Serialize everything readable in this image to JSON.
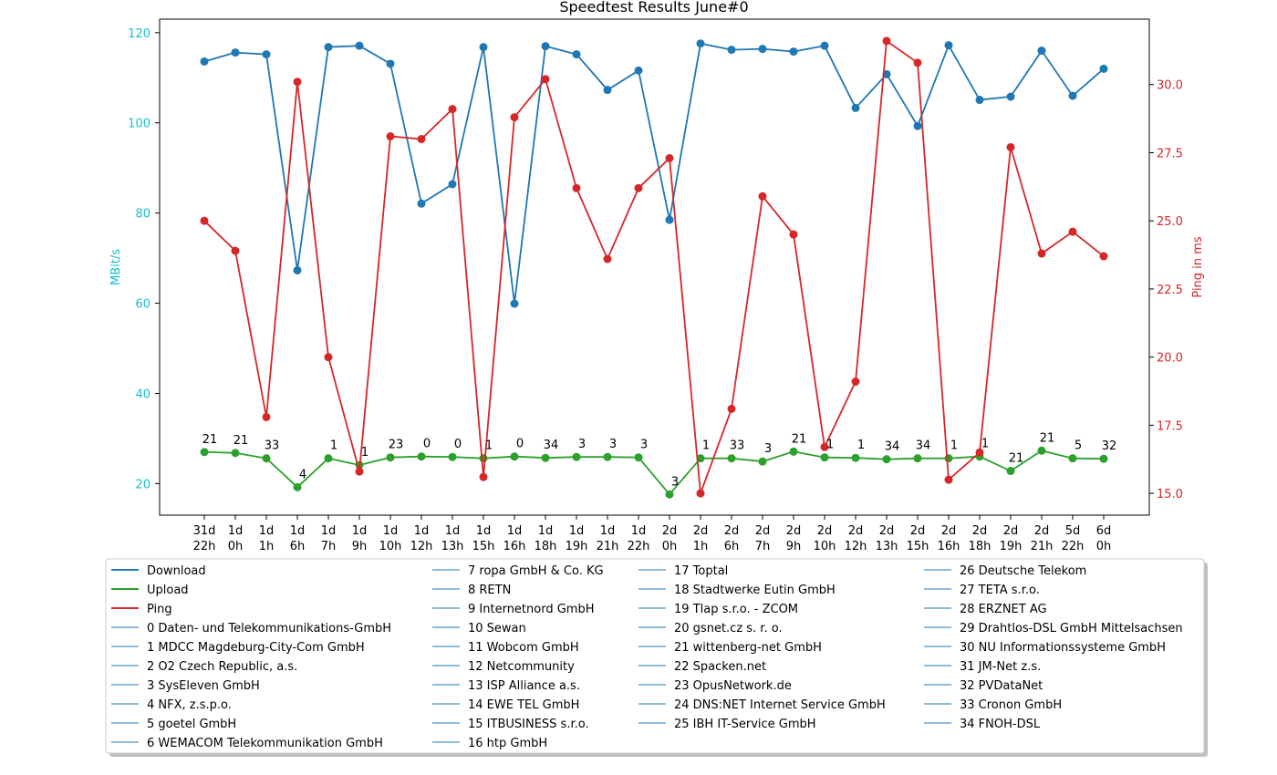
{
  "chart_data": {
    "type": "line",
    "title": "Speedtest Results June#0",
    "ylabel_left": "MBit/s",
    "ylabel_right": "Ping in ms",
    "xlabel": "",
    "categories": [
      [
        "31d",
        "22h"
      ],
      [
        "1d",
        "0h"
      ],
      [
        "1d",
        "1h"
      ],
      [
        "1d",
        "6h"
      ],
      [
        "1d",
        "7h"
      ],
      [
        "1d",
        "9h"
      ],
      [
        "1d",
        "10h"
      ],
      [
        "1d",
        "12h"
      ],
      [
        "1d",
        "13h"
      ],
      [
        "1d",
        "15h"
      ],
      [
        "1d",
        "16h"
      ],
      [
        "1d",
        "18h"
      ],
      [
        "1d",
        "19h"
      ],
      [
        "1d",
        "21h"
      ],
      [
        "1d",
        "22h"
      ],
      [
        "2d",
        "0h"
      ],
      [
        "2d",
        "1h"
      ],
      [
        "2d",
        "6h"
      ],
      [
        "2d",
        "7h"
      ],
      [
        "2d",
        "9h"
      ],
      [
        "2d",
        "10h"
      ],
      [
        "2d",
        "12h"
      ],
      [
        "2d",
        "13h"
      ],
      [
        "2d",
        "15h"
      ],
      [
        "2d",
        "16h"
      ],
      [
        "2d",
        "18h"
      ],
      [
        "2d",
        "19h"
      ],
      [
        "2d",
        "21h"
      ],
      [
        "5d",
        "22h"
      ],
      [
        "6d",
        "0h"
      ]
    ],
    "ylim_left": [
      13,
      123
    ],
    "yticks_left": [
      20,
      40,
      60,
      80,
      100,
      120
    ],
    "ylim_right": [
      14.2,
      32.4
    ],
    "yticks_right": [
      "15.0",
      "17.5",
      "20.0",
      "22.5",
      "25.0",
      "27.5",
      "30.0"
    ],
    "grid": false,
    "colors": {
      "download": "#1f77b4",
      "upload": "#2ca02c",
      "ping": "#d62728",
      "left_axis": "#17becf",
      "right_axis": "#d62728"
    },
    "series": [
      {
        "name": "Download",
        "axis": "left",
        "color": "#1f77b4",
        "values": [
          113.6,
          115.6,
          115.2,
          67.3,
          116.8,
          117.1,
          113.1,
          82.1,
          86.4,
          116.8,
          59.9,
          117.0,
          115.2,
          107.3,
          111.6,
          78.5,
          117.6,
          116.2,
          116.4,
          115.8,
          117.1,
          103.3,
          110.8,
          99.3,
          117.2,
          105.1,
          105.8,
          116.0,
          106.0,
          112.0
        ]
      },
      {
        "name": "Upload",
        "axis": "left",
        "color": "#2ca02c",
        "values": [
          27.0,
          26.8,
          25.6,
          19.2,
          25.6,
          24.1,
          25.8,
          26.0,
          25.9,
          25.6,
          26.0,
          25.7,
          25.9,
          25.9,
          25.8,
          17.6,
          25.6,
          25.6,
          24.9,
          27.1,
          25.8,
          25.7,
          25.4,
          25.6,
          25.6,
          26.0,
          22.8,
          27.3,
          25.6,
          25.5
        ]
      },
      {
        "name": "Ping",
        "axis": "right",
        "color": "#d62728",
        "values": [
          25.0,
          23.9,
          17.8,
          30.1,
          20.0,
          15.8,
          28.1,
          28.0,
          29.1,
          15.6,
          28.8,
          30.2,
          26.2,
          23.6,
          26.2,
          27.3,
          15.0,
          18.1,
          25.9,
          24.5,
          16.7,
          19.1,
          31.6,
          30.8,
          15.5,
          16.5,
          27.7,
          23.8,
          24.6,
          23.7
        ]
      }
    ],
    "annotations": [
      "21",
      "21",
      "33",
      "4",
      "1",
      "1",
      "23",
      "0",
      "0",
      "1",
      "0",
      "34",
      "3",
      "3",
      "3",
      "3",
      "1",
      "33",
      "3",
      "21",
      "1",
      "1",
      "34",
      "34",
      "1",
      "1",
      "21",
      "21",
      "5",
      "32"
    ],
    "legend": {
      "placement": "bottom",
      "series_entries": [
        "Download",
        "Upload",
        "Ping"
      ],
      "server_entries": [
        "0 Daten- und Telekommunikations-GmbH",
        "1 MDCC Magdeburg-City-Com GmbH",
        "2 O2 Czech Republic, a.s.",
        "3 SysEleven GmbH",
        "4 NFX, z.s.p.o.",
        "5 goetel GmbH",
        "6 WEMACOM Telekommunikation GmbH",
        "7 ropa GmbH & Co. KG",
        "8 RETN",
        "9 Internetnord GmbH",
        "10 Sewan",
        "11 Wobcom GmbH",
        "12 Netcommunity",
        "13 ISP Alliance a.s.",
        "14 EWE TEL GmbH",
        "15 ITBUSINESS s.r.o.",
        "16 htp GmbH",
        "17 Toptal",
        "18 Stadtwerke Eutin GmbH",
        "19 Tlap s.r.o. - ZCOM",
        "20 gsnet.cz s. r. o.",
        "21 wittenberg-net GmbH",
        "22 Spacken.net",
        "23 OpusNetwork.de",
        "24 DNS:NET Internet Service GmbH",
        "25 IBH IT-Service GmbH",
        "26 Deutsche Telekom",
        "27 TETA s.r.o.",
        "28 ERZNET AG",
        "29 Drahtlos-DSL GmbH Mittelsachsen",
        "30 NU Informationssysteme GmbH",
        "31 JM-Net z.s.",
        "32 PVDataNet",
        "33 Cronon GmbH",
        "34 FNOH-DSL"
      ]
    }
  }
}
